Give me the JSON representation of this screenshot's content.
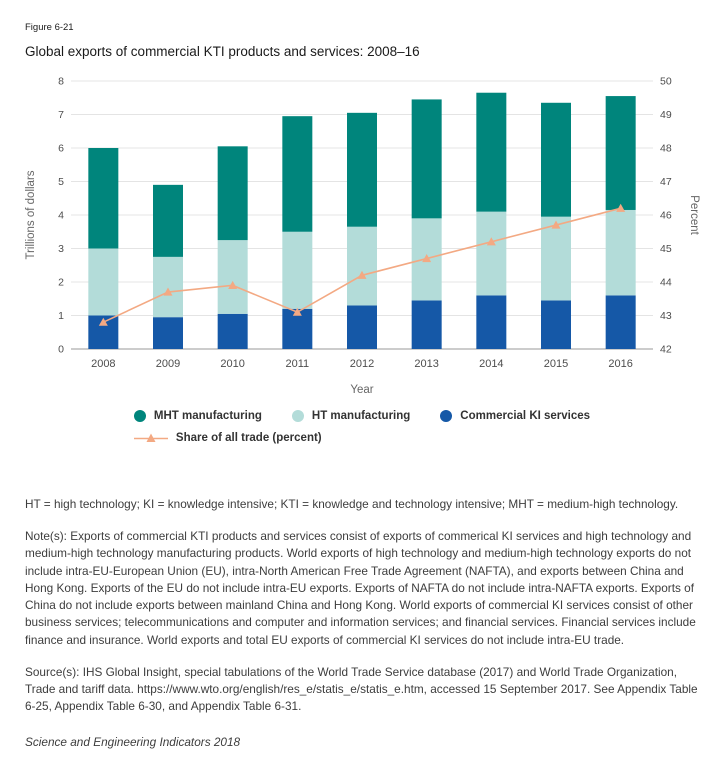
{
  "figure": {
    "label": "Figure 6-21",
    "title": "Global exports of commercial KTI products and services: 2008–16"
  },
  "chart_data": {
    "type": "bar",
    "stacked": true,
    "grid": true,
    "legend_position": "bottom",
    "categories": [
      "2008",
      "2009",
      "2010",
      "2011",
      "2012",
      "2013",
      "2014",
      "2015",
      "2016"
    ],
    "xlabel": "Year",
    "ylabel_left": "Trillions of dollars",
    "ylabel_right": "Percent",
    "left_axis": {
      "min": 0,
      "max": 8,
      "step": 1
    },
    "right_axis": {
      "min": 42,
      "max": 50,
      "step": 1
    },
    "series": [
      {
        "name": "Commercial KI services",
        "color": "#1558a7",
        "values": [
          1.0,
          0.95,
          1.05,
          1.2,
          1.3,
          1.45,
          1.6,
          1.45,
          1.6
        ]
      },
      {
        "name": "HT manufacturing",
        "color": "#b3dcd9",
        "values": [
          2.0,
          1.8,
          2.2,
          2.3,
          2.35,
          2.45,
          2.5,
          2.5,
          2.55
        ]
      },
      {
        "name": "MHT manufacturing",
        "color": "#00857c",
        "values": [
          3.0,
          2.15,
          2.8,
          3.45,
          3.4,
          3.55,
          3.55,
          3.4,
          3.4
        ]
      }
    ],
    "line": {
      "name": "Share of all trade (percent)",
      "color": "#f3a983",
      "axis": "right",
      "values": [
        42.8,
        43.7,
        43.9,
        43.1,
        44.2,
        44.7,
        45.2,
        45.7,
        46.2
      ]
    },
    "colors": {
      "grid": "#e4e4e4",
      "axis": "#9a9a9a",
      "tick_text": "#4d4d4d",
      "axis_title_text": "#666666"
    }
  },
  "notes": {
    "abbreviations": "HT = high technology; KI = knowledge intensive; KTI = knowledge and technology intensive; MHT = medium-high technology.",
    "body": "Note(s): Exports of commercial KTI products and services consist of exports of commerical KI services and high technology and medium-high technology manufacturing products. World exports of high technology and medium-high technology exports do not include intra-EU-European Union (EU), intra-North American Free Trade Agreement (NAFTA), and exports between China and Hong Kong. Exports of the EU do not include intra-EU exports. Exports of NAFTA do not include intra-NAFTA exports. Exports of China do not include exports between mainland China and Hong Kong. World exports of commercial KI services consist of other business services; telecommunications and computer and information services; and financial services. Financial services include finance and insurance. World exports and total EU exports of commercial KI services do not include intra-EU trade.",
    "sources": "Source(s): IHS Global Insight, special tabulations of the World Trade Service database (2017) and World Trade Organization, Trade and tariff data. https://www.wto.org/english/res_e/statis_e/statis_e.htm, accessed 15 September 2017. See Appendix Table 6-25, Appendix Table 6-30, and Appendix Table 6-31.",
    "footer": "Science and Engineering Indicators 2018"
  }
}
